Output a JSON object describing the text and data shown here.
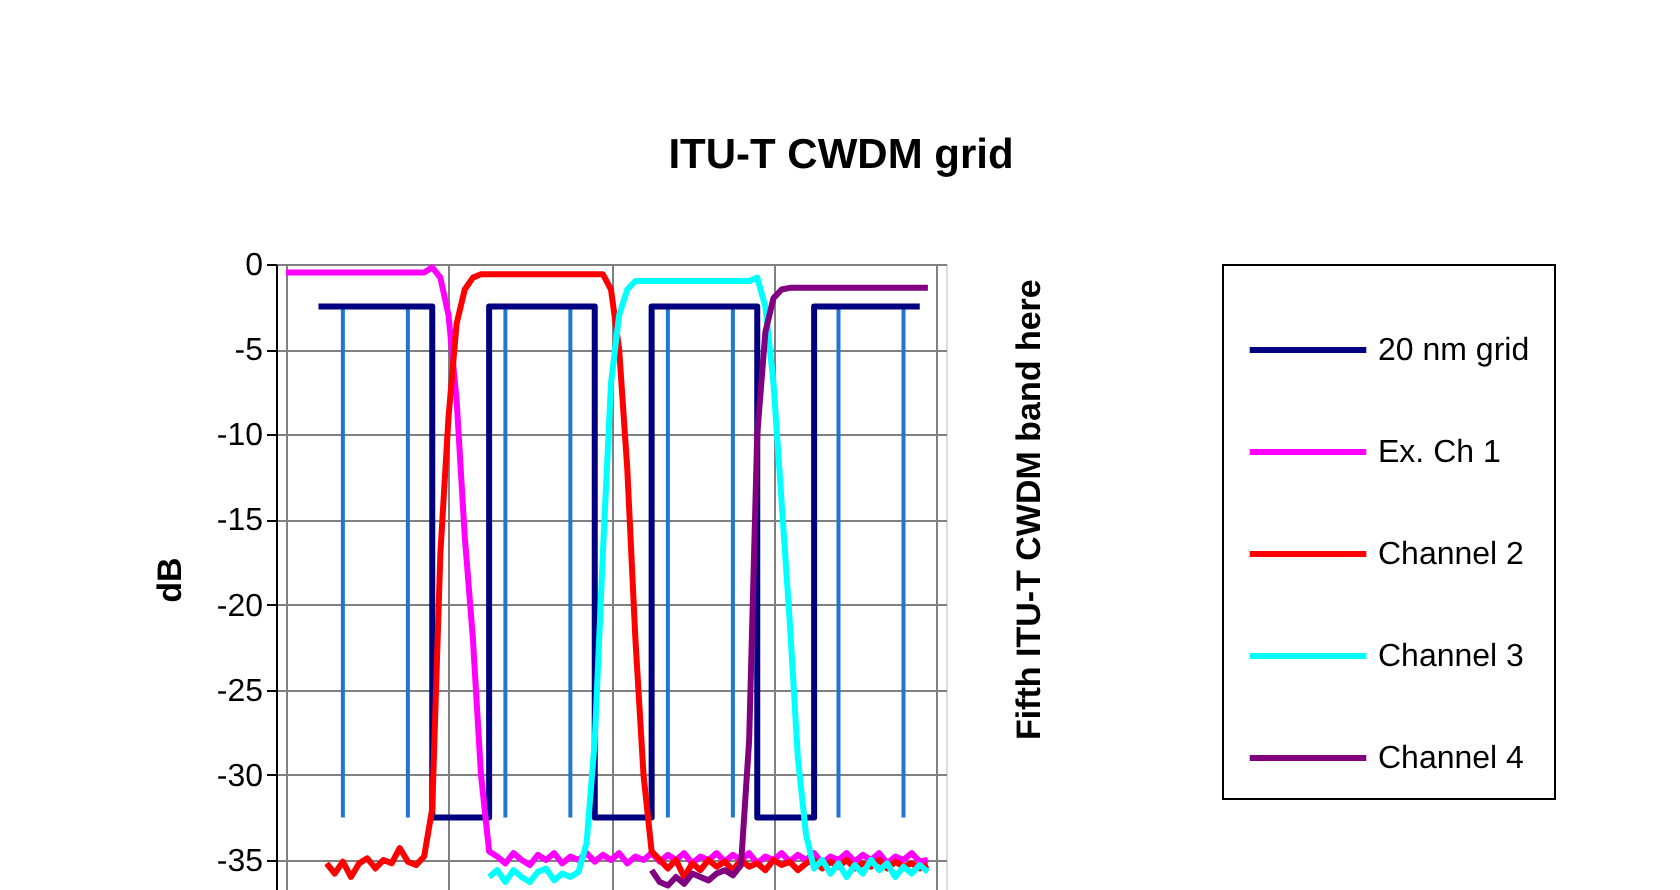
{
  "chart_data": {
    "type": "line",
    "title": "ITU-T CWDM grid",
    "ylabel": "dB",
    "categories": [
      null,
      null,
      null,
      null,
      null,
      null,
      null,
      null,
      null,
      null,
      null,
      null,
      null,
      null,
      null,
      null,
      null,
      null,
      null,
      null,
      null,
      null,
      null,
      null,
      null,
      null,
      null,
      null,
      null,
      null,
      null,
      null,
      null,
      null,
      null,
      null,
      null,
      null,
      null,
      null,
      null,
      null,
      null,
      null,
      null,
      null,
      null,
      null,
      null,
      null,
      null,
      null,
      null,
      null,
      null,
      null,
      null,
      null,
      null,
      null,
      null,
      null,
      null,
      null,
      null,
      null,
      null,
      null,
      null,
      null,
      null,
      null,
      null,
      null,
      null,
      null,
      null,
      null,
      null,
      null,
      null
    ],
    "series": [
      {
        "name": "20 nm grid",
        "type": "step",
        "color": "#000080",
        "values": [
          null,
          null,
          null,
          null,
          -2.5,
          -2.5,
          -2.5,
          -2.5,
          -2.5,
          -2.5,
          -2.5,
          -2.5,
          -2.5,
          -2.5,
          -2.5,
          -2.5,
          -2.5,
          -2.5,
          -32.5,
          -32.5,
          -32.5,
          -32.5,
          -32.5,
          -32.5,
          -32.5,
          -2.5,
          -2.5,
          -2.5,
          -2.5,
          -2.5,
          -2.5,
          -2.5,
          -2.5,
          -2.5,
          -2.5,
          -2.5,
          -2.5,
          -2.5,
          -32.5,
          -32.5,
          -32.5,
          -32.5,
          -32.5,
          -32.5,
          -32.5,
          -2.5,
          -2.5,
          -2.5,
          -2.5,
          -2.5,
          -2.5,
          -2.5,
          -2.5,
          -2.5,
          -2.5,
          -2.5,
          -2.5,
          -2.5,
          -32.5,
          -32.5,
          -32.5,
          -32.5,
          -32.5,
          -32.5,
          -32.5,
          -2.5,
          -2.5,
          -2.5,
          -2.5,
          -2.5,
          -2.5,
          -2.5,
          -2.5,
          -2.5,
          -2.5,
          -2.5,
          -2.5,
          -2.5,
          -2.5,
          null,
          null
        ]
      },
      {
        "name": "Ex. Ch 1",
        "color": "#ff00ff",
        "values": [
          -0.5,
          -0.5,
          -0.5,
          -0.5,
          -0.5,
          -0.5,
          -0.5,
          -0.5,
          -0.5,
          -0.5,
          -0.5,
          -0.5,
          -0.5,
          -0.5,
          -0.5,
          -0.5,
          -0.5,
          -0.5,
          -0.2,
          -0.8,
          -3,
          -8,
          -16,
          -22,
          -30,
          -34.5,
          -34.8,
          -35.2,
          -34.6,
          -35,
          -35.3,
          -34.7,
          -35,
          -34.6,
          -35.2,
          -34.8,
          -35,
          -34.6,
          -35.1,
          -34.7,
          -35,
          -34.6,
          -35.2,
          -34.8,
          -35,
          -34.6,
          -35.1,
          -34.7,
          -35,
          -34.6,
          -35.2,
          -34.8,
          -35,
          -34.6,
          -35.1,
          -34.7,
          -35,
          -34.6,
          -35.2,
          -34.8,
          -35,
          -34.6,
          -35.1,
          -34.7,
          -35,
          -34.6,
          -35.2,
          -34.8,
          -35,
          -34.6,
          -35.1,
          -34.7,
          -35,
          -34.6,
          -35.2,
          -34.8,
          -35,
          -34.6,
          -35.1,
          -35,
          null
        ]
      },
      {
        "name": "Channel 2",
        "color": "#ff0000",
        "values": [
          null,
          null,
          null,
          null,
          null,
          -35.2,
          -35.8,
          -35.1,
          -36,
          -35.2,
          -34.9,
          -35.5,
          -35,
          -35.2,
          -34.3,
          -35.1,
          -35.3,
          -34.8,
          -32,
          -17,
          -9,
          -3.5,
          -1.5,
          -0.8,
          -0.6,
          -0.6,
          -0.6,
          -0.6,
          -0.6,
          -0.6,
          -0.6,
          -0.6,
          -0.6,
          -0.6,
          -0.6,
          -0.6,
          -0.6,
          -0.6,
          -0.6,
          -0.6,
          -1.5,
          -5,
          -12,
          -22,
          -30,
          -34.5,
          -35,
          -35.5,
          -35,
          -36,
          -35.2,
          -35.6,
          -35,
          -35.4,
          -35.1,
          -35.6,
          -35,
          -35.4,
          -35.2,
          -35.6,
          -35,
          -35.3,
          -35.1,
          -35.6,
          -35.2,
          -35,
          -35.5,
          -35.1,
          -35.4,
          -35,
          -35.5,
          -35.2,
          -35.4,
          -35,
          -35.5,
          -35.1,
          -35.4,
          -35.2,
          -35.5,
          -35.3,
          null
        ]
      },
      {
        "name": "Channel 3",
        "color": "#00ffff",
        "values": [
          null,
          null,
          null,
          null,
          null,
          null,
          null,
          null,
          null,
          null,
          null,
          null,
          null,
          null,
          null,
          null,
          null,
          null,
          null,
          null,
          null,
          null,
          null,
          null,
          null,
          -36,
          -35.6,
          -36.3,
          -35.6,
          -36,
          -36.3,
          -35.7,
          -35.5,
          -36.2,
          -35.8,
          -36,
          -35.7,
          -34,
          -28,
          -17,
          -7,
          -3,
          -1.5,
          -1,
          -1,
          -1,
          -1,
          -1,
          -1,
          -1,
          -1,
          -1,
          -1,
          -1,
          -1,
          -1,
          -1,
          -1,
          -0.8,
          -2.5,
          -7,
          -14,
          -21,
          -29,
          -33.5,
          -35.5,
          -35,
          -35.8,
          -35.2,
          -36,
          -35.3,
          -35.8,
          -35,
          -35.6,
          -35.2,
          -36,
          -35.4,
          -35.8,
          -35.3,
          -35.7,
          null
        ]
      },
      {
        "name": "Channel 4",
        "color": "#800080",
        "values": [
          null,
          null,
          null,
          null,
          null,
          null,
          null,
          null,
          null,
          null,
          null,
          null,
          null,
          null,
          null,
          null,
          null,
          null,
          null,
          null,
          null,
          null,
          null,
          null,
          null,
          null,
          null,
          null,
          null,
          null,
          null,
          null,
          null,
          null,
          null,
          null,
          null,
          null,
          null,
          null,
          null,
          null,
          null,
          null,
          null,
          -35.6,
          -36.3,
          -36.5,
          -36,
          -36.4,
          -35.8,
          -36,
          -36.2,
          -35.8,
          -35.6,
          -35.9,
          -35.3,
          -28,
          -10,
          -4,
          -2,
          -1.5,
          -1.4,
          -1.4,
          -1.4,
          -1.4,
          -1.4,
          -1.4,
          -1.4,
          -1.4,
          -1.4,
          -1.4,
          -1.4,
          -1.4,
          -1.4,
          -1.4,
          -1.4,
          -1.4,
          -1.4,
          -1.4,
          null
        ]
      },
      {
        "type": "bar",
        "color": "#1e78d2",
        "base": [
          null,
          null,
          null,
          null,
          null,
          null,
          null,
          -32.5,
          null,
          null,
          null,
          null,
          null,
          null,
          null,
          -32.5,
          null,
          null,
          null,
          null,
          null,
          null,
          null,
          null,
          null,
          null,
          null,
          -32.5,
          null,
          null,
          null,
          null,
          null,
          null,
          null,
          -32.5,
          null,
          null,
          null,
          null,
          null,
          null,
          null,
          null,
          null,
          null,
          null,
          -32.5,
          null,
          null,
          null,
          null,
          null,
          null,
          null,
          -32.5,
          null,
          null,
          null,
          null,
          null,
          null,
          null,
          null,
          null,
          null,
          null,
          null,
          -32.5,
          null,
          null,
          null,
          null,
          null,
          null,
          null,
          -32.5,
          null,
          null,
          null,
          null
        ],
        "values": [
          null,
          null,
          null,
          null,
          null,
          null,
          null,
          30,
          null,
          null,
          null,
          null,
          null,
          null,
          null,
          30,
          null,
          null,
          null,
          null,
          null,
          null,
          null,
          null,
          null,
          null,
          null,
          30,
          null,
          null,
          null,
          null,
          null,
          null,
          null,
          30,
          null,
          null,
          null,
          null,
          null,
          null,
          null,
          null,
          null,
          null,
          null,
          30,
          null,
          null,
          null,
          null,
          null,
          null,
          null,
          30,
          null,
          null,
          null,
          null,
          null,
          null,
          null,
          null,
          null,
          null,
          null,
          null,
          30,
          null,
          null,
          null,
          null,
          null,
          null,
          null,
          30,
          null,
          null,
          null,
          null
        ]
      }
    ],
    "ylim": [
      -37,
      0
    ],
    "yticks": [
      0,
      -5,
      -10,
      -15,
      -20,
      -25,
      -30,
      -35
    ],
    "grid": true,
    "legend": "right",
    "tick_labels": "y",
    "annotations": [
      "Fifth ITU-T CWDM band here"
    ]
  }
}
